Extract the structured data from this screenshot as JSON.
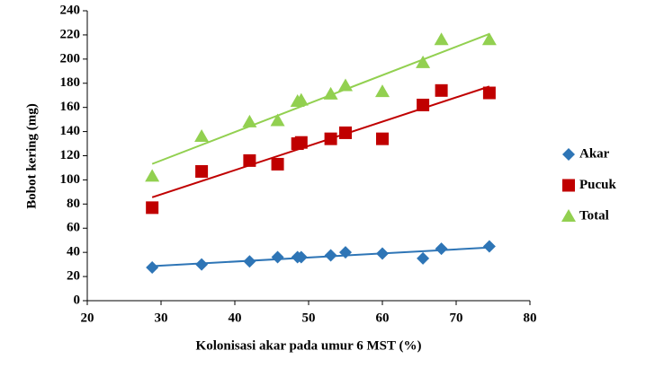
{
  "chart_data": {
    "type": "scatter",
    "x_label": "Kolonisasi akar pada umur 6 MST (%)",
    "y_label": "Bobot kering (mg)",
    "x": [
      28.8,
      35.5,
      42,
      45.8,
      48.5,
      49,
      53,
      55,
      60,
      65.5,
      68,
      74.5
    ],
    "series": [
      {
        "name": "Akar",
        "color": "#2e75b6",
        "marker": "diamond",
        "values": [
          27.5,
          30,
          32.5,
          36,
          36,
          36,
          37.5,
          40,
          39,
          35,
          43,
          45
        ]
      },
      {
        "name": "Pucuk",
        "color": "#c00000",
        "marker": "square",
        "values": [
          77,
          107,
          116,
          113,
          130,
          131,
          134,
          139,
          134,
          162,
          174,
          172
        ]
      },
      {
        "name": "Total",
        "color": "#92d050",
        "marker": "triangle",
        "values": [
          103,
          136,
          148,
          149,
          165,
          166,
          171,
          178,
          173,
          197,
          216,
          216
        ]
      }
    ],
    "trendline": true,
    "legend": "right",
    "xlim": [
      20,
      80
    ],
    "xticks": [
      20,
      30,
      40,
      50,
      60,
      70,
      80
    ],
    "ylim": [
      0,
      240
    ],
    "yticks": [
      0,
      20,
      40,
      60,
      80,
      100,
      120,
      140,
      160,
      180,
      200,
      220,
      240
    ]
  }
}
